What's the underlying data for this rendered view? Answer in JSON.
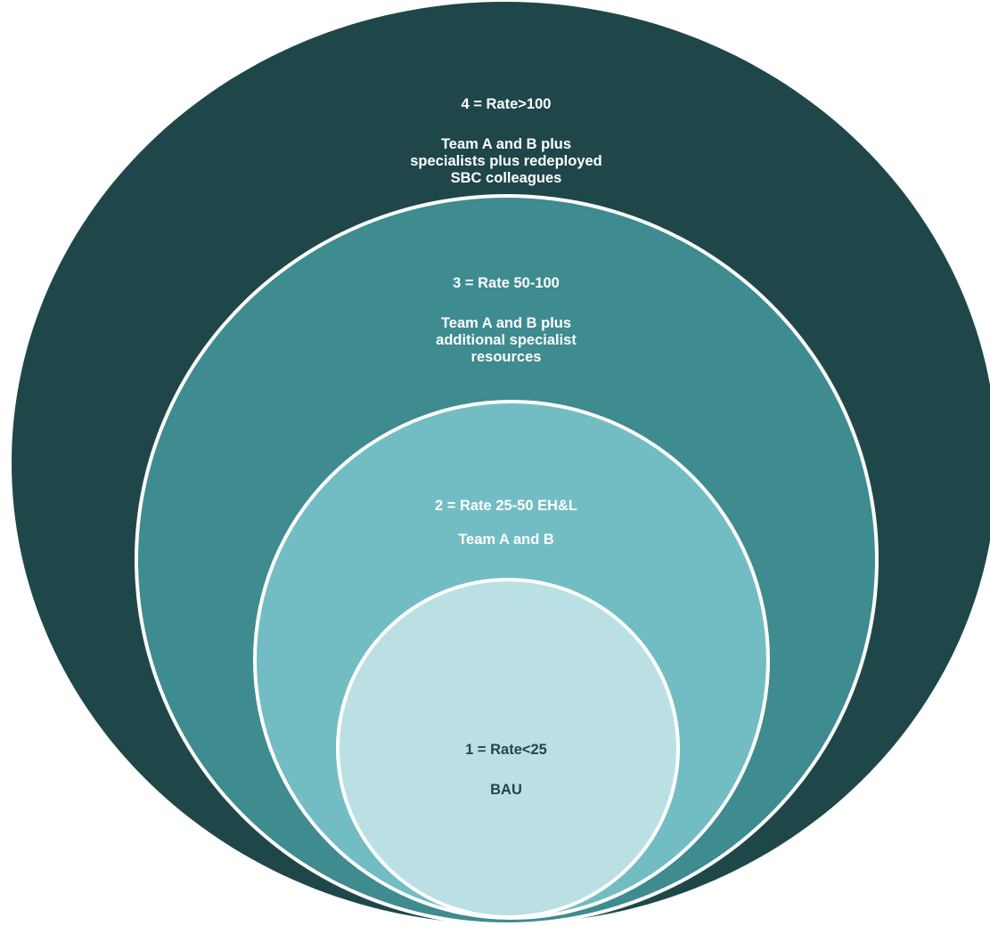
{
  "rings": [
    {
      "level": "4",
      "heading": "4 = Rate>100",
      "body": "Team A and  B plus\nspecialists plus  redeployed\nSBC colleagues",
      "fill": "#1f474a",
      "text_color": "#ffffff"
    },
    {
      "level": "3",
      "heading": "3 = Rate 50-100",
      "body": "Team A and B plus\nadditional specialist\nresources",
      "fill": "#3e8b90",
      "text_color": "#ffffff"
    },
    {
      "level": "2",
      "heading": "2 = Rate 25-50  EH&L",
      "body": "Team A and B",
      "fill": "#72bdc3",
      "text_color": "#ffffff"
    },
    {
      "level": "1",
      "heading": "1 = Rate<25",
      "body": "BAU",
      "fill": "#bbe0e3",
      "text_color": "#1f474a"
    }
  ]
}
